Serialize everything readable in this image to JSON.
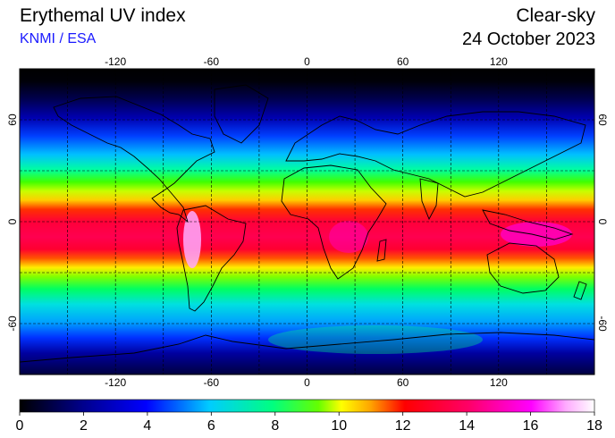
{
  "header": {
    "title": "Erythemal UV index",
    "source": "KNMI / ESA",
    "mode": "Clear-sky",
    "date": "24 October 2023"
  },
  "map": {
    "projection": "equirectangular",
    "lon_ticks": [
      -120,
      -60,
      0,
      60,
      120
    ],
    "lat_ticks": [
      60,
      0,
      -60
    ],
    "lon_tick_labels": [
      "-120",
      "-60",
      "0",
      "60",
      "120"
    ],
    "lat_tick_labels": [
      "60",
      "0",
      "-60"
    ],
    "grid_spacing_deg": 30,
    "lon_range": [
      -180,
      180
    ],
    "lat_range": [
      -90,
      90
    ]
  },
  "colorbar": {
    "min": 0,
    "max": 18,
    "labels": [
      "0",
      "2",
      "4",
      "6",
      "8",
      "10",
      "12",
      "14",
      "16",
      "18"
    ],
    "colors": [
      "#000000",
      "#00008c",
      "#0000ff",
      "#00aaff",
      "#00ffbe",
      "#00e600",
      "#aaff00",
      "#ffff00",
      "#ffa500",
      "#ff0000",
      "#ff0066",
      "#ff00ff",
      "#ff99ff",
      "#ffffff"
    ]
  }
}
